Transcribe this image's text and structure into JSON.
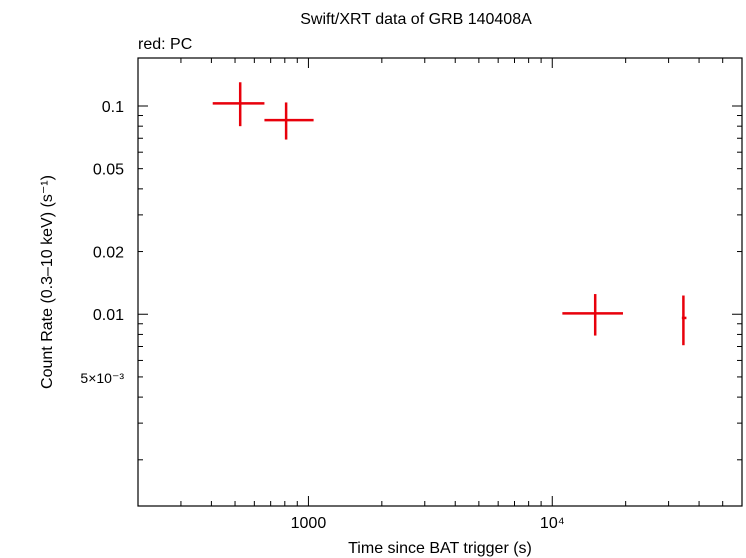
{
  "chart_data": {
    "type": "scatter",
    "title": "Swift/XRT data of GRB 140408A",
    "subtitle": "red: PC",
    "xlabel": "Time since BAT trigger (s)",
    "ylabel": "Count Rate (0.3–10 keV) (s⁻¹)",
    "xscale": "log",
    "yscale": "log",
    "xlim": [
      200,
      60000
    ],
    "ylim": [
      0.0012,
      0.17
    ],
    "xticks": [
      {
        "value": 1000,
        "label": "1000"
      },
      {
        "value": 10000,
        "label": "10⁴"
      }
    ],
    "yticks": [
      {
        "value": 0.1,
        "label": "0.1"
      },
      {
        "value": 0.05,
        "label": "0.05"
      },
      {
        "value": 0.02,
        "label": "0.02"
      },
      {
        "value": 0.01,
        "label": "0.01"
      },
      {
        "value": 0.005,
        "label": "5×10⁻³"
      }
    ],
    "grid": false,
    "series": [
      {
        "name": "PC",
        "color": "#e8000b",
        "points": [
          {
            "x": 525,
            "x_lo": 405,
            "x_hi": 660,
            "y": 0.103,
            "y_lo": 0.08,
            "y_hi": 0.13
          },
          {
            "x": 810,
            "x_lo": 660,
            "x_hi": 1050,
            "y": 0.0855,
            "y_lo": 0.069,
            "y_hi": 0.104
          },
          {
            "x": 15000,
            "x_lo": 11000,
            "x_hi": 19500,
            "y": 0.0101,
            "y_lo": 0.0079,
            "y_hi": 0.0125
          },
          {
            "x": 34500,
            "x_lo": 34000,
            "x_hi": 35500,
            "y": 0.0096,
            "y_lo": 0.0071,
            "y_hi": 0.0123
          }
        ]
      }
    ]
  }
}
